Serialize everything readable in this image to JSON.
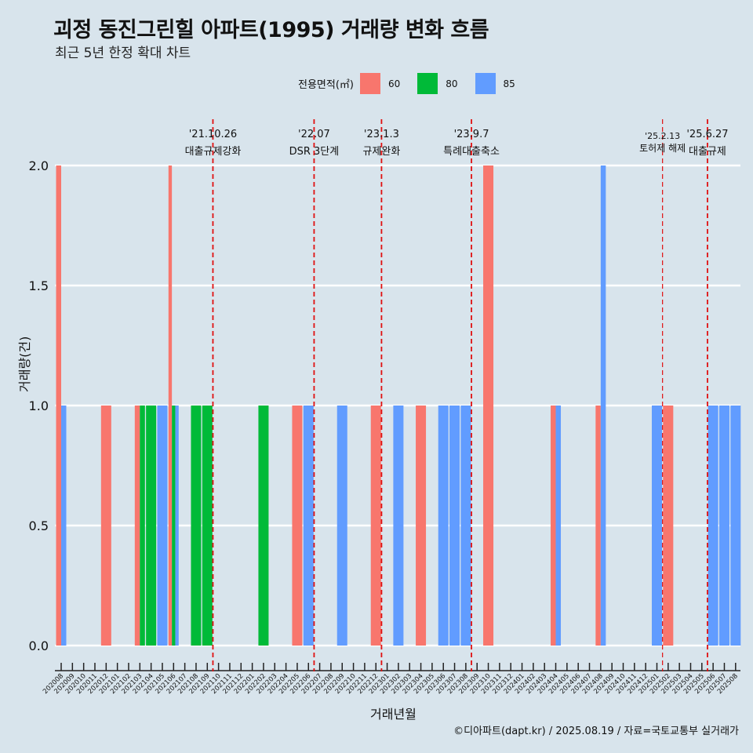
{
  "chart_data": {
    "type": "bar",
    "title": "괴정 동진그린힐 아파트(1995) 거래량 변화 흐름",
    "subtitle": "최근 5년 한정 확대 차트",
    "xlabel": "거래년월",
    "ylabel": "거래량(건)",
    "caption": "©디아파트(dapt.kr) / 2025.08.19 / 자료=국토교통부 실거래가",
    "legend_title": "전용면적(㎡)",
    "legend_position": "top",
    "ylim": [
      0,
      2
    ],
    "yticks": [
      "0.0",
      "0.5",
      "1.0",
      "1.5",
      "2.0"
    ],
    "grid": true,
    "categories": [
      "202008",
      "202009",
      "202010",
      "202011",
      "202012",
      "202101",
      "202102",
      "202103",
      "202104",
      "202105",
      "202106",
      "202107",
      "202108",
      "202109",
      "202110",
      "202111",
      "202112",
      "202201",
      "202202",
      "202203",
      "202204",
      "202205",
      "202206",
      "202207",
      "202208",
      "202209",
      "202210",
      "202211",
      "202212",
      "202301",
      "202302",
      "202303",
      "202304",
      "202305",
      "202306",
      "202307",
      "202308",
      "202309",
      "202310",
      "202311",
      "202312",
      "202401",
      "202402",
      "202403",
      "202404",
      "202405",
      "202406",
      "202407",
      "202408",
      "202409",
      "202410",
      "202411",
      "202412",
      "202501",
      "202502",
      "202503",
      "202504",
      "202505",
      "202506",
      "202507",
      "202508"
    ],
    "series": [
      {
        "name": "60",
        "color": "#f8766d",
        "values": [
          2,
          0,
          0,
          0,
          1,
          0,
          0,
          1,
          0,
          0,
          2,
          0,
          0,
          0,
          0,
          0,
          0,
          0,
          0,
          0,
          0,
          1,
          0,
          0,
          0,
          0,
          0,
          0,
          1,
          0,
          0,
          0,
          1,
          0,
          0,
          0,
          0,
          0,
          2,
          0,
          0,
          0,
          0,
          0,
          1,
          0,
          0,
          0,
          1,
          0,
          0,
          0,
          0,
          0,
          1,
          0,
          0,
          0,
          0,
          0,
          0
        ]
      },
      {
        "name": "80",
        "color": "#00ba38",
        "values": [
          0,
          0,
          0,
          0,
          0,
          0,
          0,
          1,
          1,
          0,
          1,
          0,
          1,
          1,
          0,
          0,
          0,
          0,
          1,
          0,
          0,
          0,
          0,
          0,
          0,
          0,
          0,
          0,
          0,
          0,
          0,
          0,
          0,
          0,
          0,
          0,
          0,
          0,
          0,
          0,
          0,
          0,
          0,
          0,
          0,
          0,
          0,
          0,
          0,
          0,
          0,
          0,
          0,
          0,
          0,
          0,
          0,
          0,
          0,
          0,
          0
        ]
      },
      {
        "name": "85",
        "color": "#619cff",
        "values": [
          1,
          0,
          0,
          0,
          0,
          0,
          0,
          0,
          0,
          1,
          1,
          0,
          0,
          0,
          0,
          0,
          0,
          0,
          0,
          0,
          0,
          0,
          1,
          0,
          0,
          1,
          0,
          0,
          0,
          0,
          1,
          0,
          0,
          0,
          1,
          1,
          1,
          0,
          0,
          0,
          0,
          0,
          0,
          0,
          1,
          0,
          0,
          0,
          2,
          0,
          0,
          0,
          0,
          1,
          0,
          0,
          0,
          0,
          1,
          1,
          1
        ]
      }
    ],
    "events": [
      {
        "date": "'21.10.26",
        "label": "대출규제강화",
        "month": "202110"
      },
      {
        "date": "'22.07",
        "label": "DSR 3단계",
        "month": "202207"
      },
      {
        "date": "'23.1.3",
        "label": "규제완화",
        "month": "202301"
      },
      {
        "date": "'23.9.7",
        "label": "특례대출축소",
        "month": "202309"
      },
      {
        "date": "'25.2.13",
        "label": "토허제 해제",
        "month": "202502"
      },
      {
        "date": "'25.6.27",
        "label": "대출규제",
        "month": "202506"
      }
    ]
  }
}
